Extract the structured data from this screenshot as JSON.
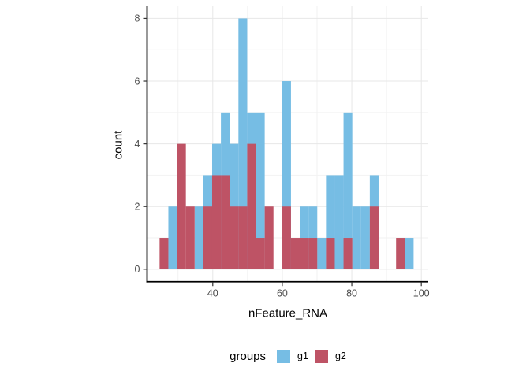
{
  "figure": {
    "background": "#FFFFFF",
    "panel_background": "#FFFFFF",
    "axis_line_color": "#000000",
    "tick_label_color": "#4D4D4D",
    "grid_major_color": "#E7E7E7",
    "grid_minor_color": "#F2F2F2"
  },
  "chart_data": {
    "type": "bar",
    "subtype": "overlaid-histogram",
    "title": "",
    "xlabel": "nFeature_RNA",
    "ylabel": "count",
    "x_ticks": [
      40,
      60,
      80,
      100
    ],
    "x_minor": [
      30,
      50,
      70,
      90
    ],
    "y_ticks": [
      0,
      2,
      4,
      6,
      8
    ],
    "y_minor": [
      1,
      3,
      5,
      7
    ],
    "x_range": [
      21.1,
      102.0
    ],
    "y_range": [
      -0.4,
      8.4
    ],
    "ylim_data": [
      0,
      8
    ],
    "grid": "on",
    "legend_position": "bottom",
    "bins": {
      "start": 24.7,
      "width": 2.52,
      "note": "30 bins; g1 drawn behind, g2 drawn in front (position=identity)",
      "series": [
        {
          "name": "g1",
          "color": "#76BDE4",
          "counts": [
            0,
            2,
            0,
            0,
            2,
            3,
            4,
            5,
            4,
            8,
            5,
            5,
            0,
            0,
            6,
            0,
            2,
            2,
            1,
            3,
            3,
            5,
            2,
            2,
            3,
            0,
            0,
            0,
            1,
            0
          ]
        },
        {
          "name": "g2",
          "color": "#BE5365",
          "counts": [
            1,
            0,
            4,
            2,
            0,
            2,
            3,
            3,
            2,
            2,
            4,
            1,
            2,
            0,
            2,
            1,
            1,
            1,
            0,
            1,
            0,
            1,
            0,
            0,
            2,
            0,
            0,
            1,
            0,
            0
          ]
        }
      ]
    }
  },
  "legend": {
    "title": "groups",
    "items": [
      {
        "label": "g1",
        "color": "#76BDE4"
      },
      {
        "label": "g2",
        "color": "#BE5365"
      }
    ]
  }
}
